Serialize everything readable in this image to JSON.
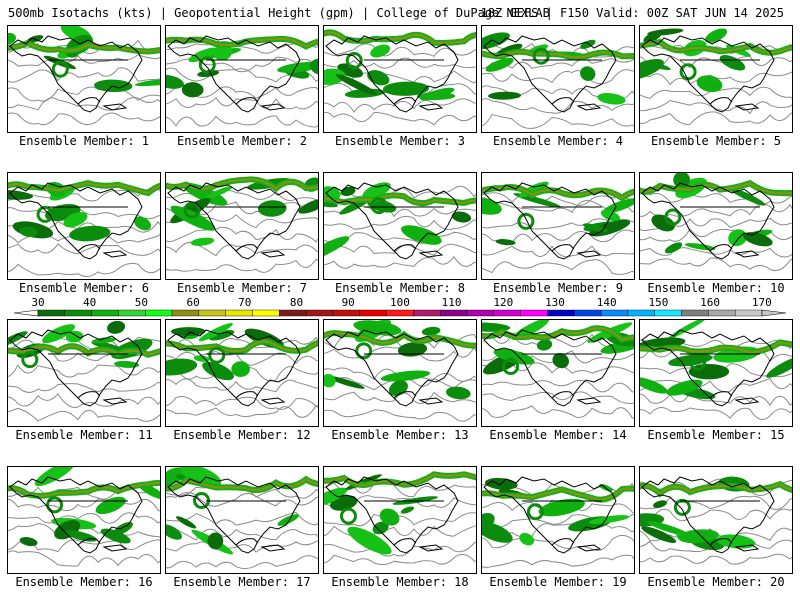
{
  "header": {
    "left": "500mb Isotachs (kts) | Geopotential Height (gpm) | College of DuPage NEXLAB",
    "right": "18Z GEFS | F150 Valid: 00Z SAT JUN 14 2025"
  },
  "panels": [
    {
      "label": "Ensemble Member: 1"
    },
    {
      "label": "Ensemble Member: 2"
    },
    {
      "label": "Ensemble Member: 3"
    },
    {
      "label": "Ensemble Member: 4"
    },
    {
      "label": "Ensemble Member: 5"
    },
    {
      "label": "Ensemble Member: 6"
    },
    {
      "label": "Ensemble Member: 7"
    },
    {
      "label": "Ensemble Member: 8"
    },
    {
      "label": "Ensemble Member: 9"
    },
    {
      "label": "Ensemble Member: 10"
    },
    {
      "label": "Ensemble Member: 11"
    },
    {
      "label": "Ensemble Member: 12"
    },
    {
      "label": "Ensemble Member: 13"
    },
    {
      "label": "Ensemble Member: 14"
    },
    {
      "label": "Ensemble Member: 15"
    },
    {
      "label": "Ensemble Member: 16"
    },
    {
      "label": "Ensemble Member: 17"
    },
    {
      "label": "Ensemble Member: 18"
    },
    {
      "label": "Ensemble Member: 19"
    },
    {
      "label": "Ensemble Member: 20"
    }
  ],
  "legend": {
    "ticks": [
      "30",
      "40",
      "50",
      "60",
      "70",
      "80",
      "90",
      "100",
      "110",
      "120",
      "130",
      "140",
      "150",
      "160",
      "170"
    ],
    "colors": [
      "#0a6d0a",
      "#0c8c0c",
      "#11b011",
      "#36d336",
      "#16ff16",
      "#8f8f14",
      "#c6c61a",
      "#e6e600",
      "#ffff00",
      "#7d1b1b",
      "#a01818",
      "#c40e0e",
      "#e60000",
      "#ff1a1a",
      "#b01a6e",
      "#8c008c",
      "#b000b0",
      "#d000d0",
      "#ff00ff",
      "#0000c8",
      "#0046e6",
      "#0a8cff",
      "#00b4ff",
      "#19e6ff",
      "#7f7f7f",
      "#a9a9a9",
      "#c8c8c8"
    ]
  }
}
